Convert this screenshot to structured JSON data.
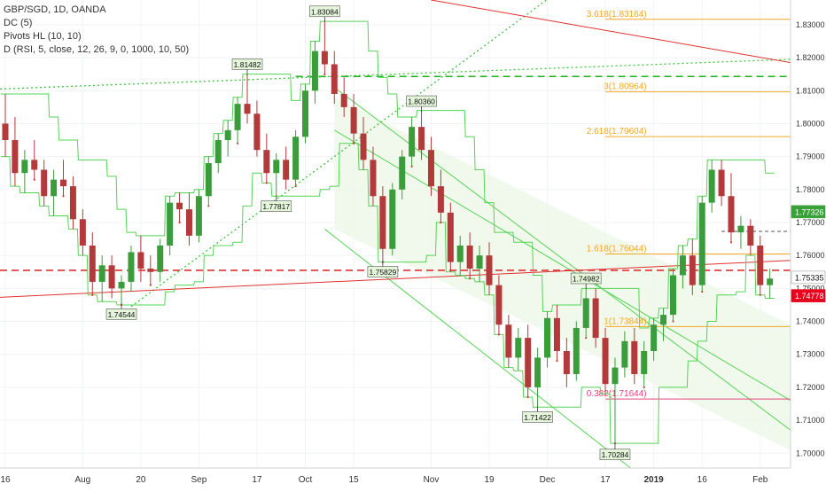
{
  "legend": {
    "symbol": "GBP/SGD, 1D, OANDA",
    "indicator_dc": "DC (5)",
    "indicator_pivots": "Pivots HL (10, 10)",
    "indicator_d": "D (RSI, 5, close, 12, 26, 9, 0, 1000, 10, 50)"
  },
  "colors": {
    "up_candle": "#3b9c3b",
    "down_candle": "#b33a3a",
    "channel": "#54d454",
    "trend_red": "#e03030",
    "fib": "#f5a623",
    "pivot_box": "#dff5d0",
    "price_current": "#e8001c",
    "price_secondary": "#3aa03a"
  },
  "chart_data": {
    "type": "candlestick",
    "ylim": [
      1.6955,
      1.8375
    ],
    "y_ticks": [
      "1.83000",
      "1.82000",
      "1.81000",
      "1.80000",
      "1.79000",
      "1.78000",
      "1.77000",
      "1.76000",
      "1.75000",
      "1.74000",
      "1.73000",
      "1.72000",
      "1.71000",
      "1.70000"
    ],
    "x_ticks": [
      "16",
      "Aug",
      "20",
      "Sep",
      "17",
      "Oct",
      "15",
      "Nov",
      "19",
      "Dec",
      "17",
      "2019",
      "16",
      "Feb"
    ],
    "price_labels": {
      "green": "1.77326",
      "neutral": "1.75335",
      "current": "1.74778"
    },
    "pivots": [
      {
        "label": "1.83084",
        "value": 1.83084,
        "bar": 33
      },
      {
        "label": "1.81482",
        "value": 1.81482,
        "bar": 25
      },
      {
        "label": "1.80360",
        "value": 1.8036,
        "bar": 43
      },
      {
        "label": "1.77817",
        "value": 1.77817,
        "bar": 28
      },
      {
        "label": "1.75829",
        "value": 1.75829,
        "bar": 39
      },
      {
        "label": "1.74544",
        "value": 1.74544,
        "bar": 12
      },
      {
        "label": "1.74982",
        "value": 1.74982,
        "bar": 60
      },
      {
        "label": "1.71422",
        "value": 1.71422,
        "bar": 55
      },
      {
        "label": "1.70284",
        "value": 1.70284,
        "bar": 63
      }
    ],
    "fib_levels": [
      {
        "label": "3.618(1.83164)",
        "value": 1.83164
      },
      {
        "label": "3(1.80964)",
        "value": 1.80964
      },
      {
        "label": "2.618(1.79604)",
        "value": 1.79604
      },
      {
        "label": "1.618(1.76044)",
        "value": 1.76044
      },
      {
        "label": "1(1.73844)",
        "value": 1.73844
      },
      {
        "label": "0.382(1.71644)",
        "value": 1.71644
      }
    ],
    "candles": [
      [
        1.8,
        1.809,
        1.79,
        1.795
      ],
      [
        1.795,
        1.802,
        1.781,
        1.785
      ],
      [
        1.785,
        1.792,
        1.779,
        1.789
      ],
      [
        1.789,
        1.795,
        1.783,
        1.786
      ],
      [
        1.786,
        1.789,
        1.775,
        1.778
      ],
      [
        1.778,
        1.786,
        1.772,
        1.783
      ],
      [
        1.783,
        1.789,
        1.778,
        1.781
      ],
      [
        1.781,
        1.784,
        1.768,
        1.771
      ],
      [
        1.771,
        1.774,
        1.76,
        1.763
      ],
      [
        1.763,
        1.767,
        1.748,
        1.752
      ],
      [
        1.752,
        1.76,
        1.746,
        1.757
      ],
      [
        1.757,
        1.76,
        1.747,
        1.75
      ],
      [
        1.75,
        1.754,
        1.745,
        1.752
      ],
      [
        1.752,
        1.763,
        1.749,
        1.761
      ],
      [
        1.761,
        1.766,
        1.752,
        1.756
      ],
      [
        1.756,
        1.76,
        1.751,
        1.755
      ],
      [
        1.755,
        1.765,
        1.752,
        1.763
      ],
      [
        1.763,
        1.778,
        1.76,
        1.776
      ],
      [
        1.776,
        1.779,
        1.77,
        1.774
      ],
      [
        1.774,
        1.779,
        1.763,
        1.766
      ],
      [
        1.766,
        1.78,
        1.764,
        1.778
      ],
      [
        1.778,
        1.79,
        1.775,
        1.788
      ],
      [
        1.788,
        1.797,
        1.785,
        1.795
      ],
      [
        1.795,
        1.801,
        1.79,
        1.798
      ],
      [
        1.798,
        1.808,
        1.794,
        1.806
      ],
      [
        1.806,
        1.815,
        1.8,
        1.803
      ],
      [
        1.803,
        1.807,
        1.79,
        1.792
      ],
      [
        1.792,
        1.797,
        1.782,
        1.785
      ],
      [
        1.785,
        1.791,
        1.778,
        1.789
      ],
      [
        1.789,
        1.793,
        1.78,
        1.783
      ],
      [
        1.783,
        1.798,
        1.781,
        1.796
      ],
      [
        1.796,
        1.812,
        1.794,
        1.81
      ],
      [
        1.81,
        1.825,
        1.806,
        1.822
      ],
      [
        1.822,
        1.831,
        1.815,
        1.818
      ],
      [
        1.818,
        1.822,
        1.806,
        1.809
      ],
      [
        1.809,
        1.814,
        1.802,
        1.805
      ],
      [
        1.805,
        1.809,
        1.794,
        1.797
      ],
      [
        1.797,
        1.802,
        1.786,
        1.789
      ],
      [
        1.789,
        1.793,
        1.775,
        1.778
      ],
      [
        1.778,
        1.781,
        1.758,
        1.762
      ],
      [
        1.762,
        1.782,
        1.76,
        1.78
      ],
      [
        1.78,
        1.792,
        1.777,
        1.79
      ],
      [
        1.79,
        1.802,
        1.787,
        1.799
      ],
      [
        1.799,
        1.804,
        1.789,
        1.792
      ],
      [
        1.792,
        1.796,
        1.778,
        1.781
      ],
      [
        1.781,
        1.786,
        1.77,
        1.773
      ],
      [
        1.773,
        1.776,
        1.755,
        1.758
      ],
      [
        1.758,
        1.766,
        1.754,
        1.763
      ],
      [
        1.763,
        1.767,
        1.753,
        1.756
      ],
      [
        1.756,
        1.763,
        1.752,
        1.76
      ],
      [
        1.76,
        1.764,
        1.748,
        1.751
      ],
      [
        1.751,
        1.754,
        1.736,
        1.739
      ],
      [
        1.739,
        1.742,
        1.726,
        1.729
      ],
      [
        1.729,
        1.738,
        1.725,
        1.735
      ],
      [
        1.735,
        1.739,
        1.717,
        1.72
      ],
      [
        1.72,
        1.732,
        1.714,
        1.729
      ],
      [
        1.729,
        1.743,
        1.726,
        1.741
      ],
      [
        1.741,
        1.745,
        1.728,
        1.731
      ],
      [
        1.731,
        1.735,
        1.72,
        1.724
      ],
      [
        1.724,
        1.74,
        1.722,
        1.738
      ],
      [
        1.738,
        1.75,
        1.735,
        1.747
      ],
      [
        1.747,
        1.75,
        1.732,
        1.735
      ],
      [
        1.735,
        1.738,
        1.718,
        1.721
      ],
      [
        1.721,
        1.729,
        1.703,
        1.726
      ],
      [
        1.726,
        1.737,
        1.723,
        1.734
      ],
      [
        1.734,
        1.738,
        1.721,
        1.724
      ],
      [
        1.724,
        1.734,
        1.72,
        1.731
      ],
      [
        1.731,
        1.741,
        1.728,
        1.739
      ],
      [
        1.739,
        1.744,
        1.734,
        1.742
      ],
      [
        1.742,
        1.756,
        1.74,
        1.754
      ],
      [
        1.754,
        1.763,
        1.75,
        1.76
      ],
      [
        1.76,
        1.765,
        1.748,
        1.751
      ],
      [
        1.751,
        1.778,
        1.749,
        1.776
      ],
      [
        1.776,
        1.789,
        1.773,
        1.786
      ],
      [
        1.786,
        1.789,
        1.775,
        1.778
      ],
      [
        1.778,
        1.785,
        1.764,
        1.767
      ],
      [
        1.767,
        1.772,
        1.762,
        1.769
      ],
      [
        1.769,
        1.771,
        1.76,
        1.763
      ],
      [
        1.763,
        1.766,
        1.748,
        1.751
      ],
      [
        1.751,
        1.756,
        1.747,
        1.753
      ]
    ]
  }
}
